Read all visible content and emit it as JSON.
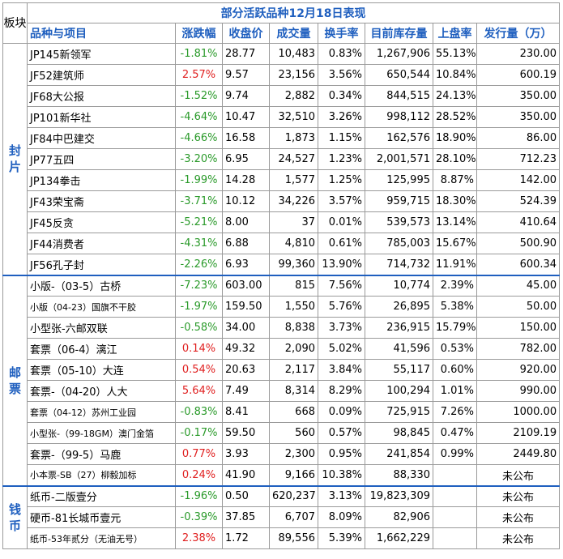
{
  "title": "部分活跃品种12月18日表现",
  "board_header": "板块",
  "headers": [
    "品种与项目",
    "涨跌幅",
    "收盘价",
    "成交量",
    "换手率",
    "目前库存量",
    "上盘率",
    "发行量（万）"
  ],
  "groups": [
    {
      "name": "封片",
      "rows": [
        [
          "JP145新领军",
          "-1.81%",
          "28.77",
          "10,483",
          "0.83%",
          "1,267,906",
          "55.13%",
          "230.00"
        ],
        [
          "JF52建筑师",
          "2.57%",
          "9.57",
          "23,156",
          "3.56%",
          "650,544",
          "10.84%",
          "600.19"
        ],
        [
          "JF68大公报",
          "-1.52%",
          "9.74",
          "2,882",
          "0.34%",
          "844,515",
          "24.13%",
          "350.00"
        ],
        [
          "JP101新华社",
          "-4.64%",
          "10.47",
          "32,510",
          "3.26%",
          "998,112",
          "28.52%",
          "350.00"
        ],
        [
          "JF84中巴建交",
          "-4.66%",
          "16.58",
          "1,873",
          "1.15%",
          "162,576",
          "18.90%",
          "86.00"
        ],
        [
          "JP77五四",
          "-3.20%",
          "6.95",
          "24,527",
          "1.23%",
          "2,001,571",
          "28.10%",
          "712.23"
        ],
        [
          "JP134拳击",
          "-1.99%",
          "14.28",
          "1,577",
          "1.25%",
          "125,995",
          "8.87%",
          "142.00"
        ],
        [
          "JF43荣宝斋",
          "-3.71%",
          "10.12",
          "34,226",
          "3.57%",
          "959,715",
          "18.30%",
          "524.39"
        ],
        [
          "JF45反贪",
          "-5.21%",
          "8.00",
          "37",
          "0.01%",
          "539,573",
          "13.14%",
          "410.64"
        ],
        [
          "JF44消费者",
          "-4.31%",
          "6.88",
          "4,810",
          "0.61%",
          "785,003",
          "15.67%",
          "500.90"
        ],
        [
          "JF56孔子封",
          "-2.26%",
          "6.93",
          "99,360",
          "13.90%",
          "714,732",
          "11.91%",
          "600.34"
        ]
      ]
    },
    {
      "name": "邮票",
      "rows": [
        [
          "小版-（03-5）古桥",
          "-7.23%",
          "603.00",
          "815",
          "7.56%",
          "10,774",
          "2.39%",
          "45.00"
        ],
        [
          "小版（04-23）国旗不干胶",
          "-1.97%",
          "159.50",
          "1,550",
          "5.76%",
          "26,895",
          "5.38%",
          "50.00"
        ],
        [
          "小型张-六邮双联",
          "-0.58%",
          "34.00",
          "8,838",
          "3.73%",
          "236,915",
          "15.79%",
          "150.00"
        ],
        [
          "套票（06-4）漓江",
          "0.14%",
          "49.32",
          "2,090",
          "5.02%",
          "41,596",
          "0.53%",
          "782.00"
        ],
        [
          "套票（05-10）大连",
          "0.54%",
          "20.63",
          "2,117",
          "3.84%",
          "55,117",
          "0.60%",
          "920.00"
        ],
        [
          "套票-（04-20）人大",
          "5.64%",
          "7.49",
          "8,314",
          "8.29%",
          "100,294",
          "1.01%",
          "990.00"
        ],
        [
          "套票（04-12）苏州工业园",
          "-0.83%",
          "8.41",
          "668",
          "0.09%",
          "725,915",
          "7.26%",
          "1000.00"
        ],
        [
          "小型张-（99-18GM）澳门金箔",
          "-0.17%",
          "59.50",
          "560",
          "0.57%",
          "98,845",
          "0.47%",
          "2109.19"
        ],
        [
          "套票-（99-5）马鹿",
          "0.77%",
          "3.93",
          "2,300",
          "0.95%",
          "241,854",
          "0.99%",
          "2449.80"
        ],
        [
          "小本票-SB（27）柳毅加标",
          "0.24%",
          "41.90",
          "9,166",
          "10.38%",
          "88,330",
          "",
          "未公布"
        ]
      ]
    },
    {
      "name": "钱币",
      "rows": [
        [
          "纸币-二版壹分",
          "-1.96%",
          "0.50",
          "620,237",
          "3.13%",
          "19,823,309",
          "",
          "未公布"
        ],
        [
          "硬币-81长城币壹元",
          "-0.39%",
          "37.85",
          "6,707",
          "8.09%",
          "82,906",
          "",
          "未公布"
        ],
        [
          "纸币-53年贰分（无油无号）",
          "2.38%",
          "1.72",
          "89,556",
          "5.39%",
          "1,662,229",
          "",
          "未公布"
        ]
      ]
    }
  ]
}
